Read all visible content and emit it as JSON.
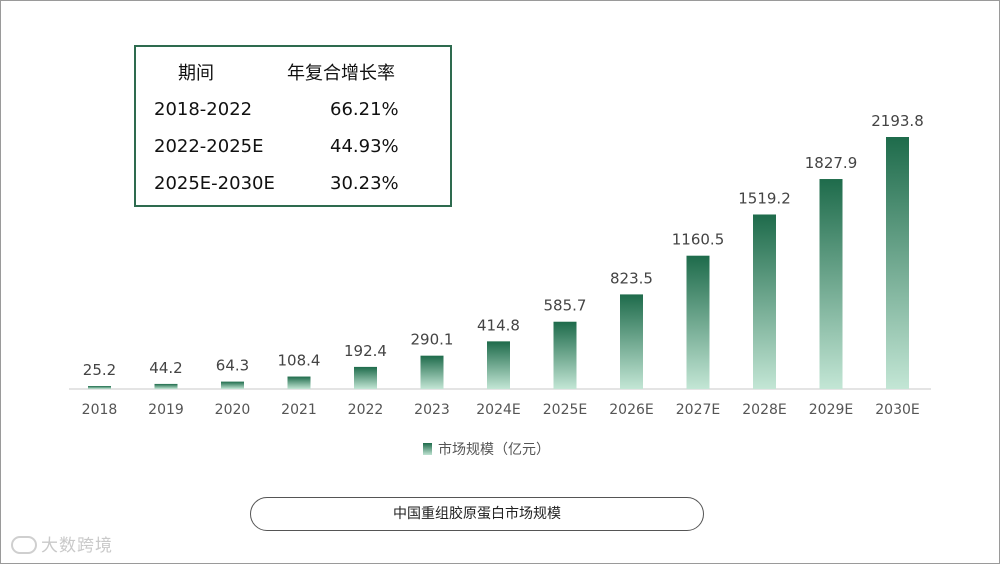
{
  "cagr_table": {
    "header": {
      "period": "期间",
      "rate": "年复合增长率"
    },
    "rows": [
      {
        "period": "2018-2022",
        "rate": "66.21%"
      },
      {
        "period": "2022-2025E",
        "rate": "44.93%"
      },
      {
        "period": "2025E-2030E",
        "rate": "30.23%"
      }
    ]
  },
  "legend": {
    "label": "市场规模（亿元）"
  },
  "caption": "中国重组胶原蛋白市场规模",
  "watermark": "大数跨境",
  "colors": {
    "bar_top": "#1e6b4b",
    "bar_bottom": "#c3e6d5",
    "box_border": "#2e6b4f"
  },
  "chart_data": {
    "type": "bar",
    "categories": [
      "2018",
      "2019",
      "2020",
      "2021",
      "2022",
      "2023",
      "2024E",
      "2025E",
      "2026E",
      "2027E",
      "2028E",
      "2029E",
      "2030E"
    ],
    "series": [
      {
        "name": "市场规模（亿元）",
        "values": [
          25.2,
          44.2,
          64.3,
          108.4,
          192.4,
          290.1,
          414.8,
          585.7,
          823.5,
          1160.5,
          1519.2,
          1827.9,
          2193.8
        ]
      }
    ],
    "value_labels": [
      "25.2",
      "44.2",
      "64.3",
      "108.4",
      "192.4",
      "290.1",
      "414.8",
      "585.7",
      "823.5",
      "1160.5",
      "1519.2",
      "1827.9",
      "2193.8"
    ],
    "ylim": [
      0,
      2193.8
    ],
    "grid": false,
    "legend_position": "bottom-center"
  }
}
